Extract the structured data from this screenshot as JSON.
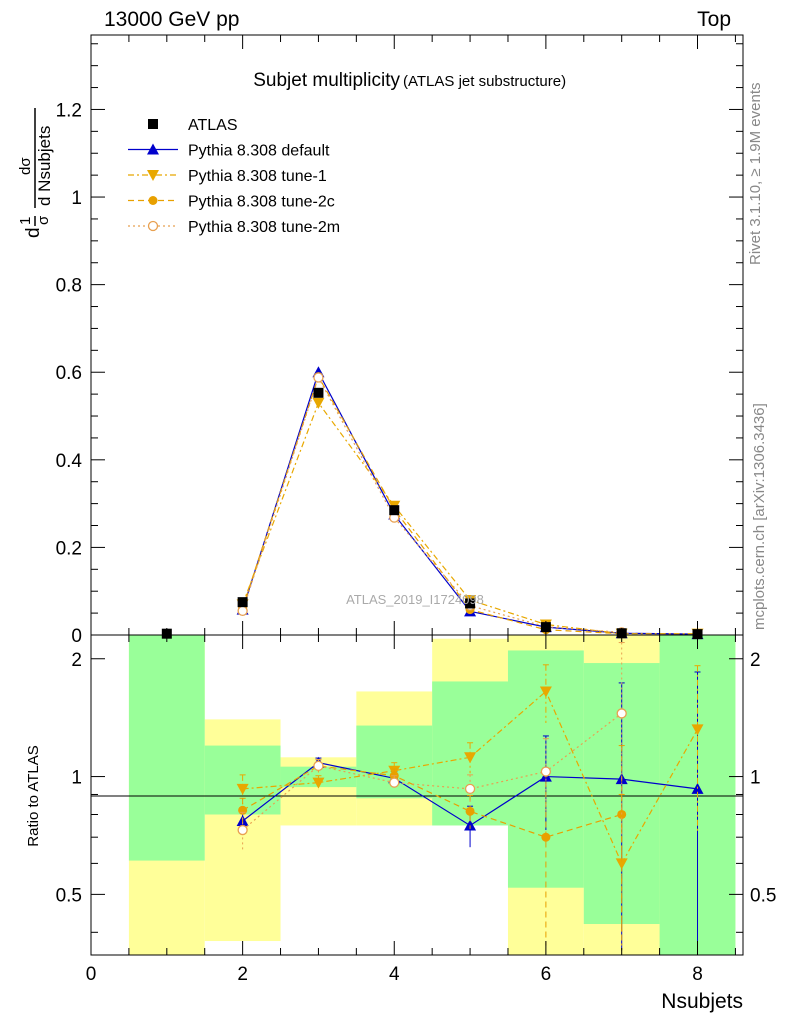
{
  "header": {
    "energy_label": "13000 GeV pp",
    "process_label": "Top"
  },
  "side_labels": {
    "rivet": "Rivet 3.1.10, ≥ 1.9M events",
    "mcplots": "mcplots.cern.ch [arXiv:1306.3436]"
  },
  "chart_data": {
    "type": "line",
    "title": "Subjet multiplicity",
    "subtitle": "(ATLAS jet substructure)",
    "watermark": "ATLAS_2019_I1724098",
    "xlabel": "Nsubjets",
    "ylabel_main": "1/σ dσ/d Nsubjets",
    "ylabel_main_parts": {
      "a": "d",
      "b": "1",
      "c": "dσ",
      "d": "σ",
      "e": "dσ",
      "f": "d Nsubjets"
    },
    "ylabel_ratio": "Ratio to ATLAS",
    "xlim": [
      0,
      8.6
    ],
    "ylim_main": [
      0,
      1.37
    ],
    "ylim_ratio": [
      0.35,
      2.3
    ],
    "x_ticks": [
      "0",
      "2",
      "4",
      "6",
      "8"
    ],
    "y_ticks_main": [
      "0",
      "0.2",
      "0.4",
      "0.6",
      "0.8",
      "1",
      "1.2"
    ],
    "y_ticks_ratio": [
      "0.5",
      "1",
      "2"
    ],
    "legend_position": "top-left",
    "categories": [
      1,
      2,
      3,
      4,
      5,
      6,
      7,
      8
    ],
    "data": {
      "name": "ATLAS",
      "values": [
        0.003,
        0.075,
        0.553,
        0.285,
        0.072,
        0.018,
        0.004,
        0.002
      ],
      "band_green": [
        [
          0.61,
          2.3
        ],
        [
          0.8,
          1.2
        ],
        [
          0.94,
          1.06
        ],
        [
          0.88,
          1.35
        ],
        [
          0.75,
          1.75
        ],
        [
          0.52,
          2.1
        ],
        [
          0.42,
          1.95
        ],
        [
          0.35,
          2.3
        ]
      ],
      "band_yellow": [
        [
          0.35,
          2.3
        ],
        [
          0.38,
          1.4
        ],
        [
          0.75,
          1.12
        ],
        [
          0.75,
          1.65
        ],
        [
          0.75,
          2.25
        ],
        [
          0.35,
          2.3
        ],
        [
          0.35,
          2.3
        ],
        [
          0.35,
          2.3
        ]
      ]
    },
    "series": [
      {
        "name": "Pythia 8.308 default",
        "color": "#0000cc",
        "marker": "triangle-up",
        "dash": "solid",
        "values": [
          null,
          0.058,
          0.6,
          0.275,
          0.054,
          0.018,
          0.004,
          0.002
        ],
        "ratio": [
          null,
          0.77,
          1.085,
          0.99,
          0.75,
          1.0,
          0.985,
          0.93
        ],
        "ratio_err": [
          null,
          0.04,
          0.03,
          0.04,
          0.09,
          0.27,
          0.75,
          0.92
        ]
      },
      {
        "name": "Pythia 8.308 tune-1",
        "color": "#e8a800",
        "marker": "triangle-down",
        "dash": "6,3,2,3",
        "values": [
          null,
          0.07,
          0.53,
          0.295,
          0.08,
          0.024,
          0.003,
          0.003
        ],
        "ratio": [
          null,
          0.93,
          0.965,
          1.035,
          1.12,
          1.65,
          0.6,
          1.32
        ],
        "ratio_err": [
          null,
          0.08,
          0.04,
          0.05,
          0.1,
          0.28,
          0.3,
          0.6
        ]
      },
      {
        "name": "Pythia 8.308 tune-2c",
        "color": "#e8a000",
        "marker": "circle-filled",
        "dash": "6,4",
        "values": [
          null,
          0.062,
          0.59,
          0.287,
          0.058,
          0.012,
          0.003,
          null
        ],
        "ratio": [
          null,
          0.82,
          1.065,
          1.005,
          0.815,
          0.7,
          0.8,
          null
        ],
        "ratio_err": [
          null,
          0.06,
          0.04,
          0.04,
          0.08,
          0.33,
          0.4,
          null
        ]
      },
      {
        "name": "Pythia 8.308 tune-2m",
        "color": "#e8a050",
        "marker": "circle-open",
        "dash": "2,3",
        "values": [
          null,
          0.055,
          0.588,
          0.268,
          0.067,
          0.019,
          0.006,
          null
        ],
        "ratio": [
          null,
          0.73,
          1.065,
          0.965,
          0.93,
          1.03,
          1.45,
          null
        ],
        "ratio_err": [
          null,
          0.08,
          0.04,
          0.04,
          0.08,
          0.22,
          0.75,
          null
        ]
      }
    ]
  }
}
